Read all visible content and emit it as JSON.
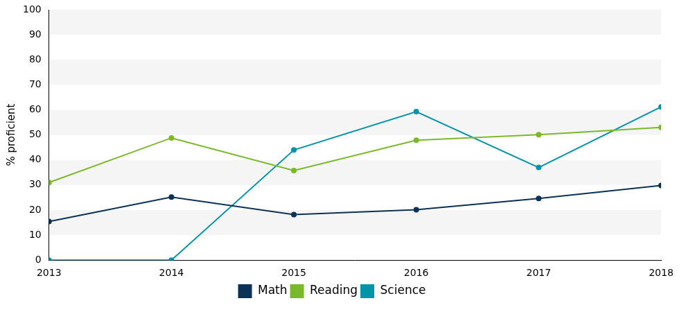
{
  "chart_data": {
    "type": "line",
    "y_label": "% proficient",
    "categories": [
      "2013",
      "2014",
      "2015",
      "2016",
      "2017",
      "2018"
    ],
    "series": [
      {
        "name": "Math",
        "color": "#0b3157",
        "marker": "circle",
        "values": [
          15.4,
          25.2,
          18.2,
          20.1,
          24.6,
          29.8
        ]
      },
      {
        "name": "Reading",
        "color": "#7ab929",
        "marker": "circle",
        "values": [
          31.0,
          48.8,
          35.8,
          47.9,
          50.1,
          53.0
        ]
      },
      {
        "name": "Science",
        "color": "#0094a8",
        "marker": "circle",
        "values": [
          0,
          0,
          44.0,
          59.3,
          37.0,
          61.2
        ]
      }
    ],
    "ylim": [
      0,
      100
    ],
    "yticks": [
      0,
      10,
      20,
      30,
      40,
      50,
      60,
      70,
      80,
      90,
      100
    ],
    "grid": true,
    "legend": "bottom"
  }
}
